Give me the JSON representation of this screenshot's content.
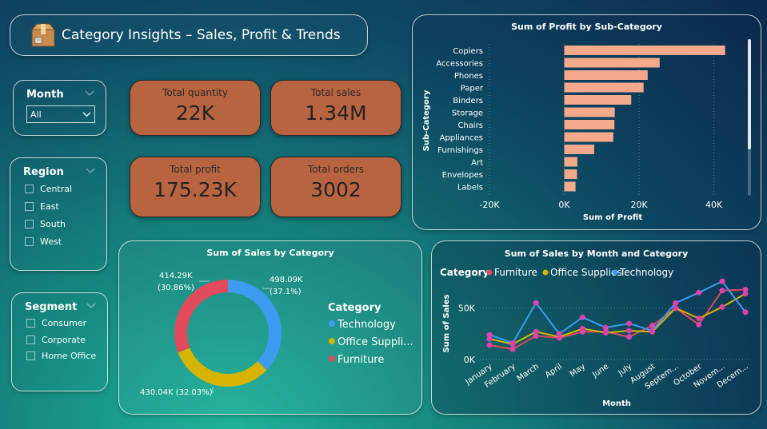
{
  "title": "Category Insights – Sales, Profit & Trends",
  "slicers": {
    "month": {
      "title": "Month",
      "selected": "All"
    },
    "region": {
      "title": "Region",
      "options": [
        "Central",
        "East",
        "South",
        "West"
      ]
    },
    "segment": {
      "title": "Segment",
      "options": [
        "Consumer",
        "Corporate",
        "Home Office"
      ]
    }
  },
  "kpis": [
    {
      "label": "Total quantity",
      "value": "22K"
    },
    {
      "label": "Total sales",
      "value": "1.34M"
    },
    {
      "label": "Total profit",
      "value": "175.23K"
    },
    {
      "label": "Total orders",
      "value": "3002"
    }
  ],
  "colors": {
    "kpi_bg": "#b86440",
    "bar": "#f4a98a",
    "technology": "#3b9cf0",
    "office_supplies": "#d6b400",
    "furniture": "#e04a5a",
    "marker": "#e040b0"
  },
  "chart_data": [
    {
      "type": "bar",
      "orientation": "horizontal",
      "title": "Sum of Profit by Sub-Category",
      "xlabel": "Sum of Profit",
      "ylabel": "Sub-Category",
      "xlim": [
        -20000,
        45000
      ],
      "xticks": [
        "-20K",
        "0K",
        "20K",
        "40K"
      ],
      "xtick_values": [
        -20000,
        0,
        20000,
        40000
      ],
      "categories": [
        "Copiers",
        "Accessories",
        "Phones",
        "Paper",
        "Binders",
        "Storage",
        "Chairs",
        "Appliances",
        "Furnishings",
        "Art",
        "Envelopes",
        "Labels"
      ],
      "values": [
        43000,
        25500,
        22300,
        21200,
        17900,
        13500,
        13400,
        13100,
        8000,
        3500,
        3400,
        3000
      ],
      "grid": true
    },
    {
      "type": "pie",
      "donut": true,
      "title": "Sum of Sales by Category",
      "legend_title": "Category",
      "legend_position": "right",
      "categories": [
        "Technology",
        "Office Supplies",
        "Furniture"
      ],
      "legend_labels": [
        "Technology",
        "Office Suppli...",
        "Furniture"
      ],
      "values": [
        498090,
        430040,
        414290
      ],
      "labels": [
        "498.09K",
        "430.04K",
        "414.29K"
      ],
      "percent_labels": [
        "(37.1%)",
        "(32.03%)",
        "(30.86%)"
      ]
    },
    {
      "type": "line",
      "title": "Sum of Sales by Month and Category",
      "xlabel": "Month",
      "ylabel": "Sum of Sales",
      "legend_title": "Category",
      "legend_position": "top-left",
      "x": [
        "January",
        "February",
        "March",
        "April",
        "May",
        "June",
        "July",
        "August",
        "Septem...",
        "October",
        "Novem...",
        "Decem..."
      ],
      "ylim": [
        0,
        80000
      ],
      "yticks": [
        "0K",
        "50K"
      ],
      "ytick_values": [
        0,
        50000
      ],
      "series": [
        {
          "name": "Furniture",
          "values": [
            14000,
            10000,
            23000,
            21000,
            27000,
            27000,
            22000,
            33000,
            50000,
            34000,
            67000,
            68000
          ]
        },
        {
          "name": "Office Supplies",
          "values": [
            20000,
            15000,
            27000,
            22000,
            30000,
            26000,
            28000,
            27000,
            50000,
            40000,
            51000,
            64000
          ]
        },
        {
          "name": "Technology",
          "values": [
            24000,
            16000,
            55000,
            25000,
            41000,
            31000,
            35000,
            28000,
            55000,
            65000,
            76000,
            46000
          ]
        }
      ]
    }
  ]
}
